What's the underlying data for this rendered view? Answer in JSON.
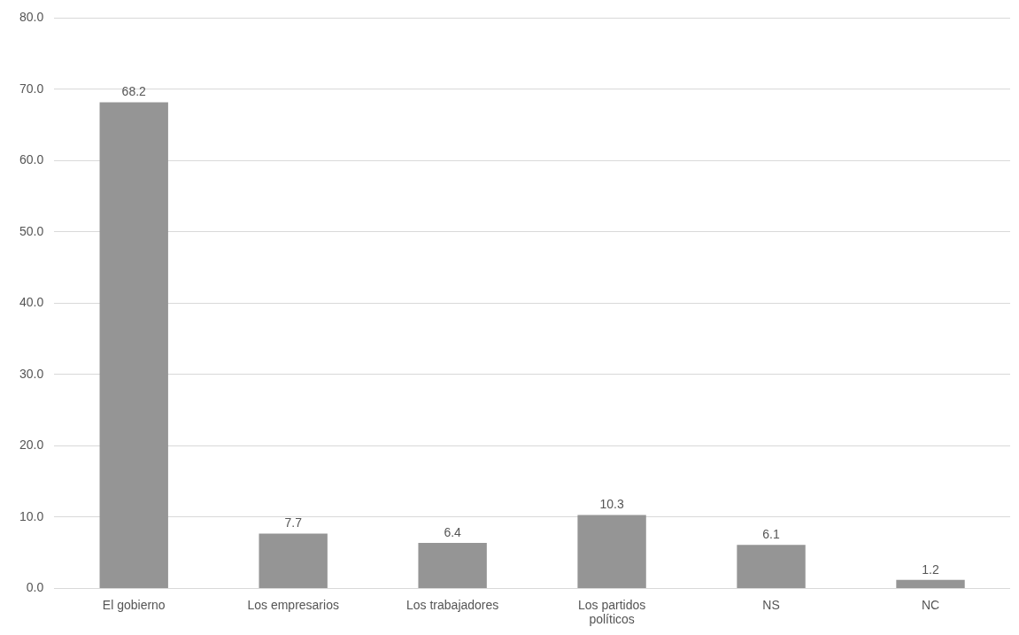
{
  "chart_data": {
    "type": "bar",
    "categories": [
      "El gobierno",
      "Los empresarios",
      "Los trabajadores",
      "Los partidos políticos",
      "NS",
      "NC"
    ],
    "values": [
      68.2,
      7.7,
      6.4,
      10.3,
      6.1,
      1.2
    ],
    "color": "#959595",
    "ylim": [
      0,
      80
    ],
    "yticks": [
      {
        "value": 0,
        "label": "0.0"
      },
      {
        "value": 10,
        "label": "10.0"
      },
      {
        "value": 20,
        "label": "20.0"
      },
      {
        "value": 30,
        "label": "30.0"
      },
      {
        "value": 40,
        "label": "40.0"
      },
      {
        "value": 50,
        "label": "50.0"
      },
      {
        "value": 60,
        "label": "60.0"
      },
      {
        "value": 70,
        "label": "70.0"
      },
      {
        "value": 80,
        "label": "80.0"
      }
    ],
    "grid": "y",
    "legend": false,
    "data_labels": true
  }
}
